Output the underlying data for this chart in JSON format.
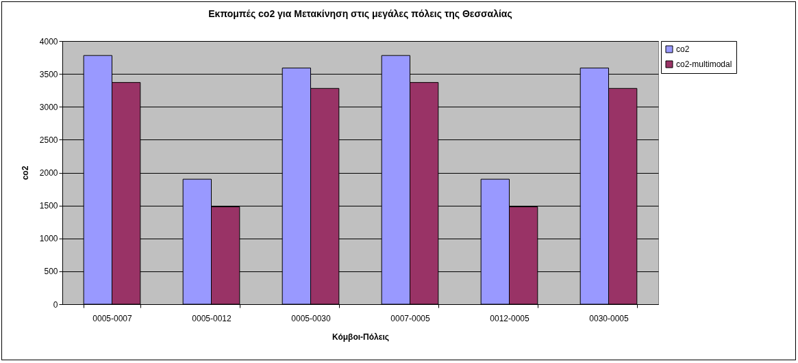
{
  "chart_data": {
    "type": "bar",
    "title": "Εκπομπές co2 για Μετακίνηση στις μεγάλες πόλεις της Θεσσαλίας",
    "xlabel": "Κόμβοι-Πόλεις",
    "ylabel": "co2",
    "categories": [
      "0005-0007",
      "0005-0012",
      "0005-0030",
      "0007-0005",
      "0012-0005",
      "0030-0005"
    ],
    "series": [
      {
        "name": "co2",
        "color": "#9999ff",
        "values": [
          3780,
          1900,
          3590,
          3780,
          1900,
          3590
        ]
      },
      {
        "name": "co2-multimodal",
        "color": "#993366",
        "values": [
          3370,
          1480,
          3280,
          3370,
          1480,
          3280
        ]
      }
    ],
    "ylim": [
      0,
      4000
    ],
    "yticks": [
      0,
      500,
      1000,
      1500,
      2000,
      2500,
      3000,
      3500,
      4000
    ],
    "grid": "y",
    "legend": "right"
  }
}
